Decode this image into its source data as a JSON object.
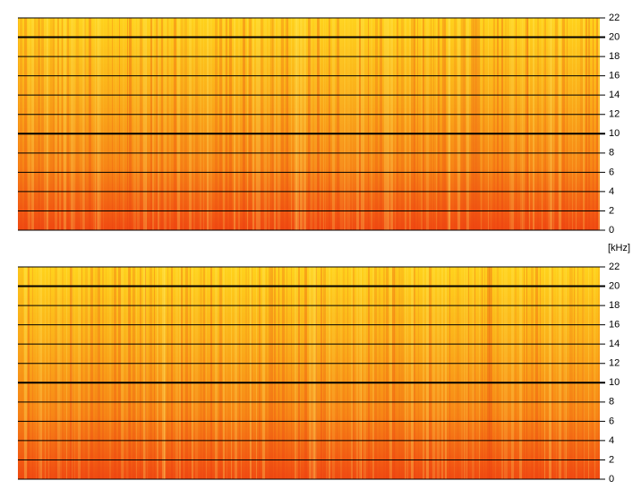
{
  "chart_data": [
    {
      "type": "spectrogram",
      "ylabel": "[kHz]",
      "ylim": [
        0,
        22
      ],
      "yticks": [
        0,
        2,
        4,
        6,
        8,
        10,
        12,
        14,
        16,
        18,
        20,
        22
      ],
      "grid": true
    },
    {
      "type": "spectrogram",
      "ylim": [
        0,
        22
      ],
      "yticks": [
        0,
        2,
        4,
        6,
        8,
        10,
        12,
        14,
        16,
        18,
        20,
        22
      ],
      "grid": true
    }
  ]
}
